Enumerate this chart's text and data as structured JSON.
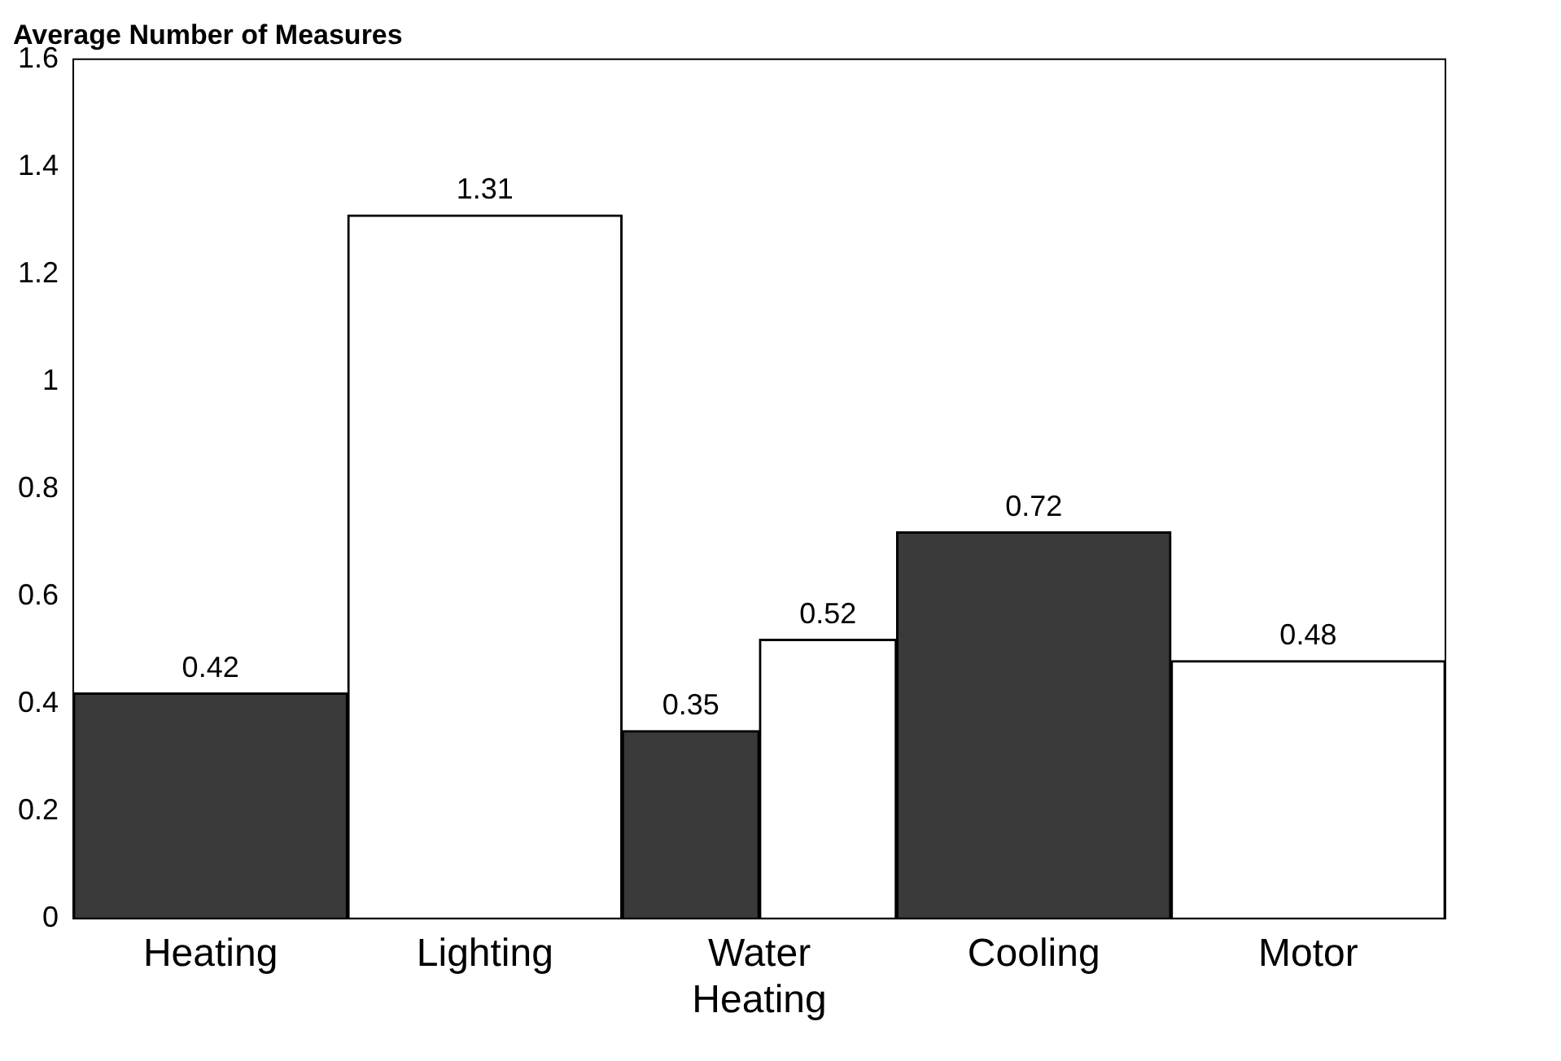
{
  "chart_data": {
    "type": "bar",
    "ylabel": "Average Number of Measures",
    "categories": [
      "Heating",
      "Lighting",
      "Water Heating",
      "Cooling",
      "Motor"
    ],
    "series": [
      {
        "color": "#3a3a3a",
        "values": [
          0.42,
          null,
          0.35,
          0.72,
          null
        ]
      },
      {
        "color": "#ffffff",
        "values": [
          null,
          1.31,
          0.52,
          null,
          0.48
        ]
      }
    ],
    "ylim": [
      0,
      1.6
    ],
    "yticks": [
      0,
      0.2,
      0.4,
      0.6,
      0.8,
      1,
      1.2,
      1.4,
      1.6
    ],
    "grid": false,
    "legend": false,
    "data_labels": true
  }
}
